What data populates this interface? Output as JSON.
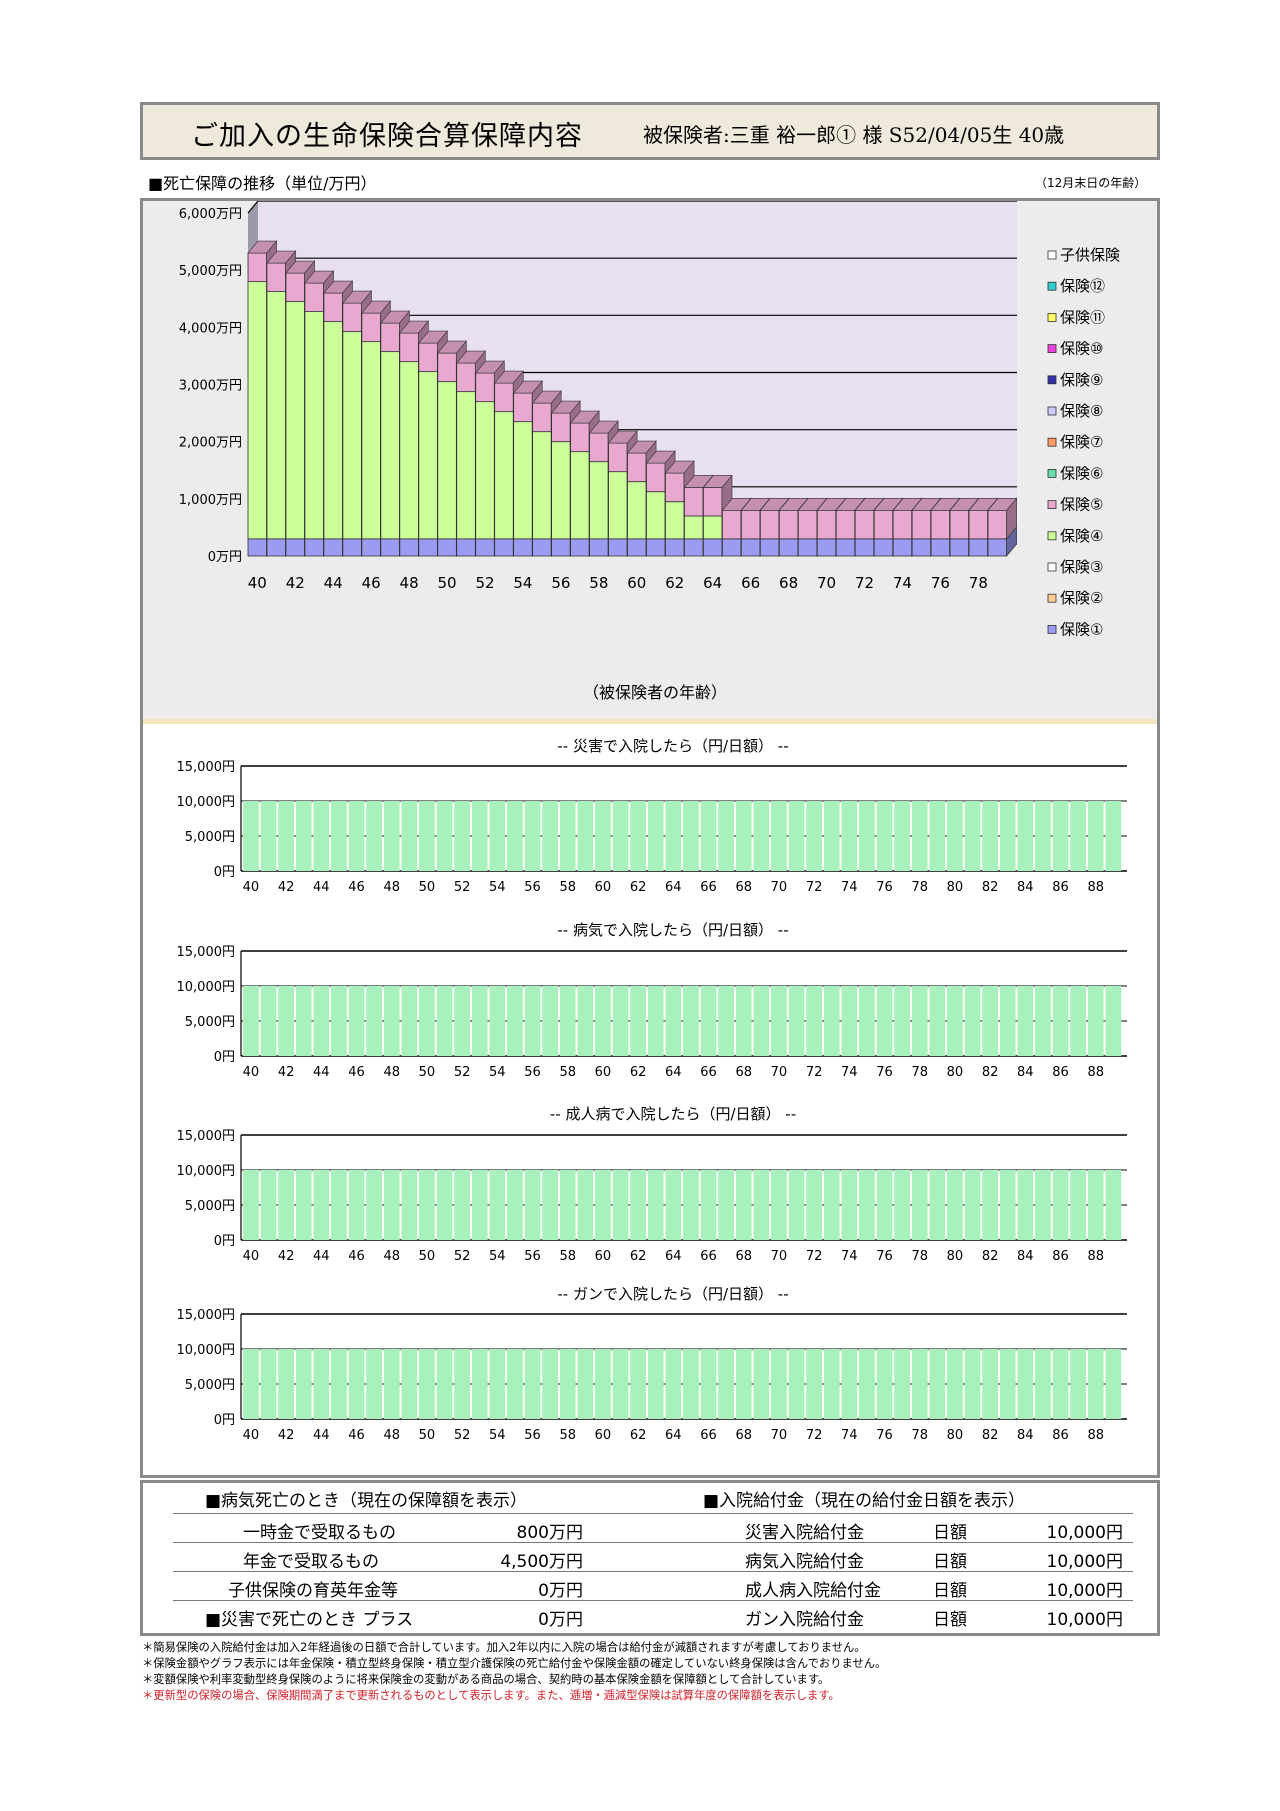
{
  "header": {
    "title": "ご加入の生命保険合算保障内容",
    "insured": "被保険者:三重 裕一郎① 様 S52/04/05生 40歳"
  },
  "death_section": {
    "heading": "■死亡保障の推移（単位/万円）",
    "age_note": "（12月末日の年齢）"
  },
  "hosp_titles": [
    "-- 災害で入院したら（円/日額） --",
    "-- 病気で入院したら（円/日額） --",
    "-- 成人病で入院したら（円/日額） --",
    "-- ガンで入院したら（円/日額） --"
  ],
  "colors": {
    "hoken1": "#9b9bf2",
    "hoken4": "#ccff99",
    "hoken5": "#e8a8d0",
    "plot_bg": "#e8dff0",
    "hosp_bar": "#a8f0bc"
  },
  "chart_data": [
    {
      "type": "bar",
      "stacked": true,
      "title": "",
      "xlabel": "（被保険者の年齢）",
      "ylabel": "",
      "ylim": [
        0,
        6000
      ],
      "y_ticks": [
        "0万円",
        "1,000万円",
        "2,000万円",
        "3,000万円",
        "4,000万円",
        "5,000万円",
        "6,000万円"
      ],
      "x_tick_labels": [
        "40",
        "42",
        "44",
        "46",
        "48",
        "50",
        "52",
        "54",
        "56",
        "58",
        "60",
        "62",
        "64",
        "66",
        "68",
        "70",
        "72",
        "74",
        "76",
        "78"
      ],
      "categories": [
        40,
        41,
        42,
        43,
        44,
        45,
        46,
        47,
        48,
        49,
        50,
        51,
        52,
        53,
        54,
        55,
        56,
        57,
        58,
        59,
        60,
        61,
        62,
        63,
        64,
        65,
        66,
        67,
        68,
        69,
        70,
        71,
        72,
        73,
        74,
        75,
        76,
        77,
        78,
        79
      ],
      "legend": [
        "子供保険",
        "保険⑫",
        "保険⑪",
        "保険⑩",
        "保険⑨",
        "保険⑧",
        "保険⑦",
        "保険⑥",
        "保険⑤",
        "保険④",
        "保険③",
        "保険②",
        "保険①"
      ],
      "legend_colors": [
        "#ffffff",
        "#33cccc",
        "#ffff66",
        "#ee44dd",
        "#3333aa",
        "#ccccff",
        "#ff9966",
        "#66ddaa",
        "#e8a8d0",
        "#ccff99",
        "#ffffff",
        "#ffcc99",
        "#9b9bf2"
      ],
      "series": [
        {
          "name": "保険①",
          "values": [
            300,
            300,
            300,
            300,
            300,
            300,
            300,
            300,
            300,
            300,
            300,
            300,
            300,
            300,
            300,
            300,
            300,
            300,
            300,
            300,
            300,
            300,
            300,
            300,
            300,
            300,
            300,
            300,
            300,
            300,
            300,
            300,
            300,
            300,
            300,
            300,
            300,
            300,
            300,
            300
          ]
        },
        {
          "name": "保険④",
          "values": [
            4500,
            4325,
            4150,
            3975,
            3800,
            3625,
            3450,
            3275,
            3100,
            2925,
            2750,
            2575,
            2400,
            2225,
            2050,
            1875,
            1700,
            1525,
            1350,
            1175,
            1000,
            825,
            650,
            400,
            400,
            0,
            0,
            0,
            0,
            0,
            0,
            0,
            0,
            0,
            0,
            0,
            0,
            0,
            0,
            0
          ]
        },
        {
          "name": "保険⑤",
          "values": [
            500,
            500,
            500,
            500,
            500,
            500,
            500,
            500,
            500,
            500,
            500,
            500,
            500,
            500,
            500,
            500,
            500,
            500,
            500,
            500,
            500,
            500,
            500,
            500,
            500,
            500,
            500,
            500,
            500,
            500,
            500,
            500,
            500,
            500,
            500,
            500,
            500,
            500,
            500,
            500
          ]
        }
      ]
    },
    {
      "type": "bar",
      "title": "-- 災害で入院したら（円/日額） --",
      "ylim": [
        0,
        15000
      ],
      "y_ticks": [
        "0円",
        "5,000円",
        "10,000円",
        "15,000円"
      ],
      "x_tick_labels": [
        "40",
        "42",
        "44",
        "46",
        "48",
        "50",
        "52",
        "54",
        "56",
        "58",
        "60",
        "62",
        "64",
        "66",
        "68",
        "70",
        "72",
        "74",
        "76",
        "78",
        "80",
        "82",
        "84",
        "86",
        "88"
      ],
      "categories": [
        40,
        41,
        42,
        43,
        44,
        45,
        46,
        47,
        48,
        49,
        50,
        51,
        52,
        53,
        54,
        55,
        56,
        57,
        58,
        59,
        60,
        61,
        62,
        63,
        64,
        65,
        66,
        67,
        68,
        69,
        70,
        71,
        72,
        73,
        74,
        75,
        76,
        77,
        78,
        79,
        80,
        81,
        82,
        83,
        84,
        85,
        86,
        87,
        88,
        89
      ],
      "values": [
        10000,
        10000,
        10000,
        10000,
        10000,
        10000,
        10000,
        10000,
        10000,
        10000,
        10000,
        10000,
        10000,
        10000,
        10000,
        10000,
        10000,
        10000,
        10000,
        10000,
        10000,
        10000,
        10000,
        10000,
        10000,
        10000,
        10000,
        10000,
        10000,
        10000,
        10000,
        10000,
        10000,
        10000,
        10000,
        10000,
        10000,
        10000,
        10000,
        10000,
        10000,
        10000,
        10000,
        10000,
        10000,
        10000,
        10000,
        10000,
        10000,
        10000
      ]
    },
    {
      "type": "bar",
      "title": "-- 病気で入院したら（円/日額） --",
      "ylim": [
        0,
        15000
      ],
      "y_ticks": [
        "0円",
        "5,000円",
        "10,000円",
        "15,000円"
      ],
      "x_tick_labels": [
        "40",
        "42",
        "44",
        "46",
        "48",
        "50",
        "52",
        "54",
        "56",
        "58",
        "60",
        "62",
        "64",
        "66",
        "68",
        "70",
        "72",
        "74",
        "76",
        "78",
        "80",
        "82",
        "84",
        "86",
        "88"
      ],
      "categories": [
        40,
        41,
        42,
        43,
        44,
        45,
        46,
        47,
        48,
        49,
        50,
        51,
        52,
        53,
        54,
        55,
        56,
        57,
        58,
        59,
        60,
        61,
        62,
        63,
        64,
        65,
        66,
        67,
        68,
        69,
        70,
        71,
        72,
        73,
        74,
        75,
        76,
        77,
        78,
        79,
        80,
        81,
        82,
        83,
        84,
        85,
        86,
        87,
        88,
        89
      ],
      "values": [
        10000,
        10000,
        10000,
        10000,
        10000,
        10000,
        10000,
        10000,
        10000,
        10000,
        10000,
        10000,
        10000,
        10000,
        10000,
        10000,
        10000,
        10000,
        10000,
        10000,
        10000,
        10000,
        10000,
        10000,
        10000,
        10000,
        10000,
        10000,
        10000,
        10000,
        10000,
        10000,
        10000,
        10000,
        10000,
        10000,
        10000,
        10000,
        10000,
        10000,
        10000,
        10000,
        10000,
        10000,
        10000,
        10000,
        10000,
        10000,
        10000,
        10000
      ]
    },
    {
      "type": "bar",
      "title": "-- 成人病で入院したら（円/日額） --",
      "ylim": [
        0,
        15000
      ],
      "y_ticks": [
        "0円",
        "5,000円",
        "10,000円",
        "15,000円"
      ],
      "x_tick_labels": [
        "40",
        "42",
        "44",
        "46",
        "48",
        "50",
        "52",
        "54",
        "56",
        "58",
        "60",
        "62",
        "64",
        "66",
        "68",
        "70",
        "72",
        "74",
        "76",
        "78",
        "80",
        "82",
        "84",
        "86",
        "88"
      ],
      "categories": [
        40,
        41,
        42,
        43,
        44,
        45,
        46,
        47,
        48,
        49,
        50,
        51,
        52,
        53,
        54,
        55,
        56,
        57,
        58,
        59,
        60,
        61,
        62,
        63,
        64,
        65,
        66,
        67,
        68,
        69,
        70,
        71,
        72,
        73,
        74,
        75,
        76,
        77,
        78,
        79,
        80,
        81,
        82,
        83,
        84,
        85,
        86,
        87,
        88,
        89
      ],
      "values": [
        10000,
        10000,
        10000,
        10000,
        10000,
        10000,
        10000,
        10000,
        10000,
        10000,
        10000,
        10000,
        10000,
        10000,
        10000,
        10000,
        10000,
        10000,
        10000,
        10000,
        10000,
        10000,
        10000,
        10000,
        10000,
        10000,
        10000,
        10000,
        10000,
        10000,
        10000,
        10000,
        10000,
        10000,
        10000,
        10000,
        10000,
        10000,
        10000,
        10000,
        10000,
        10000,
        10000,
        10000,
        10000,
        10000,
        10000,
        10000,
        10000,
        10000
      ]
    },
    {
      "type": "bar",
      "title": "-- ガンで入院したら（円/日額） --",
      "ylim": [
        0,
        15000
      ],
      "y_ticks": [
        "0円",
        "5,000円",
        "10,000円",
        "15,000円"
      ],
      "x_tick_labels": [
        "40",
        "42",
        "44",
        "46",
        "48",
        "50",
        "52",
        "54",
        "56",
        "58",
        "60",
        "62",
        "64",
        "66",
        "68",
        "70",
        "72",
        "74",
        "76",
        "78",
        "80",
        "82",
        "84",
        "86",
        "88"
      ],
      "categories": [
        40,
        41,
        42,
        43,
        44,
        45,
        46,
        47,
        48,
        49,
        50,
        51,
        52,
        53,
        54,
        55,
        56,
        57,
        58,
        59,
        60,
        61,
        62,
        63,
        64,
        65,
        66,
        67,
        68,
        69,
        70,
        71,
        72,
        73,
        74,
        75,
        76,
        77,
        78,
        79,
        80,
        81,
        82,
        83,
        84,
        85,
        86,
        87,
        88,
        89
      ],
      "values": [
        10000,
        10000,
        10000,
        10000,
        10000,
        10000,
        10000,
        10000,
        10000,
        10000,
        10000,
        10000,
        10000,
        10000,
        10000,
        10000,
        10000,
        10000,
        10000,
        10000,
        10000,
        10000,
        10000,
        10000,
        10000,
        10000,
        10000,
        10000,
        10000,
        10000,
        10000,
        10000,
        10000,
        10000,
        10000,
        10000,
        10000,
        10000,
        10000,
        10000,
        10000,
        10000,
        10000,
        10000,
        10000,
        10000,
        10000,
        10000,
        10000,
        10000
      ]
    }
  ],
  "summary": {
    "left_heading": "■病気死亡のとき（現在の保障額を表示）",
    "right_heading": "■入院給付金（現在の給付金日額を表示）",
    "left_rows": [
      {
        "label": "一時金で受取るもの",
        "value": "800万円"
      },
      {
        "label": "年金で受取るもの",
        "value": "4,500万円"
      },
      {
        "label": "子供保険の育英年金等",
        "value": "0万円"
      }
    ],
    "disaster_label": "■災害で死亡のとき プラス",
    "disaster_value": "0万円",
    "right_rows": [
      {
        "label": "災害入院給付金",
        "unit": "日額",
        "value": "10,000円"
      },
      {
        "label": "病気入院給付金",
        "unit": "日額",
        "value": "10,000円"
      },
      {
        "label": "成人病入院給付金",
        "unit": "日額",
        "value": "10,000円"
      },
      {
        "label": "ガン入院給付金",
        "unit": "日額",
        "value": "10,000円"
      }
    ]
  },
  "notes": [
    "＊簡易保険の入院給付金は加入2年経過後の日額で合計しています。加入2年以内に入院の場合は給付金が減額されますが考慮しておりません。",
    "＊保険金額やグラフ表示には年金保険・積立型終身保険・積立型介護保険の死亡給付金や保険金額の確定していない終身保険は含んでおりません。",
    "＊変額保険や利率変動型終身保険のように将来保険金の変動がある商品の場合、契約時の基本保険金額を保障額として合計しています。",
    "＊更新型の保険の場合、保険期間満了まで更新されるものとして表示します。また、逓増・逓減型保険は試算年度の保障額を表示します。"
  ]
}
